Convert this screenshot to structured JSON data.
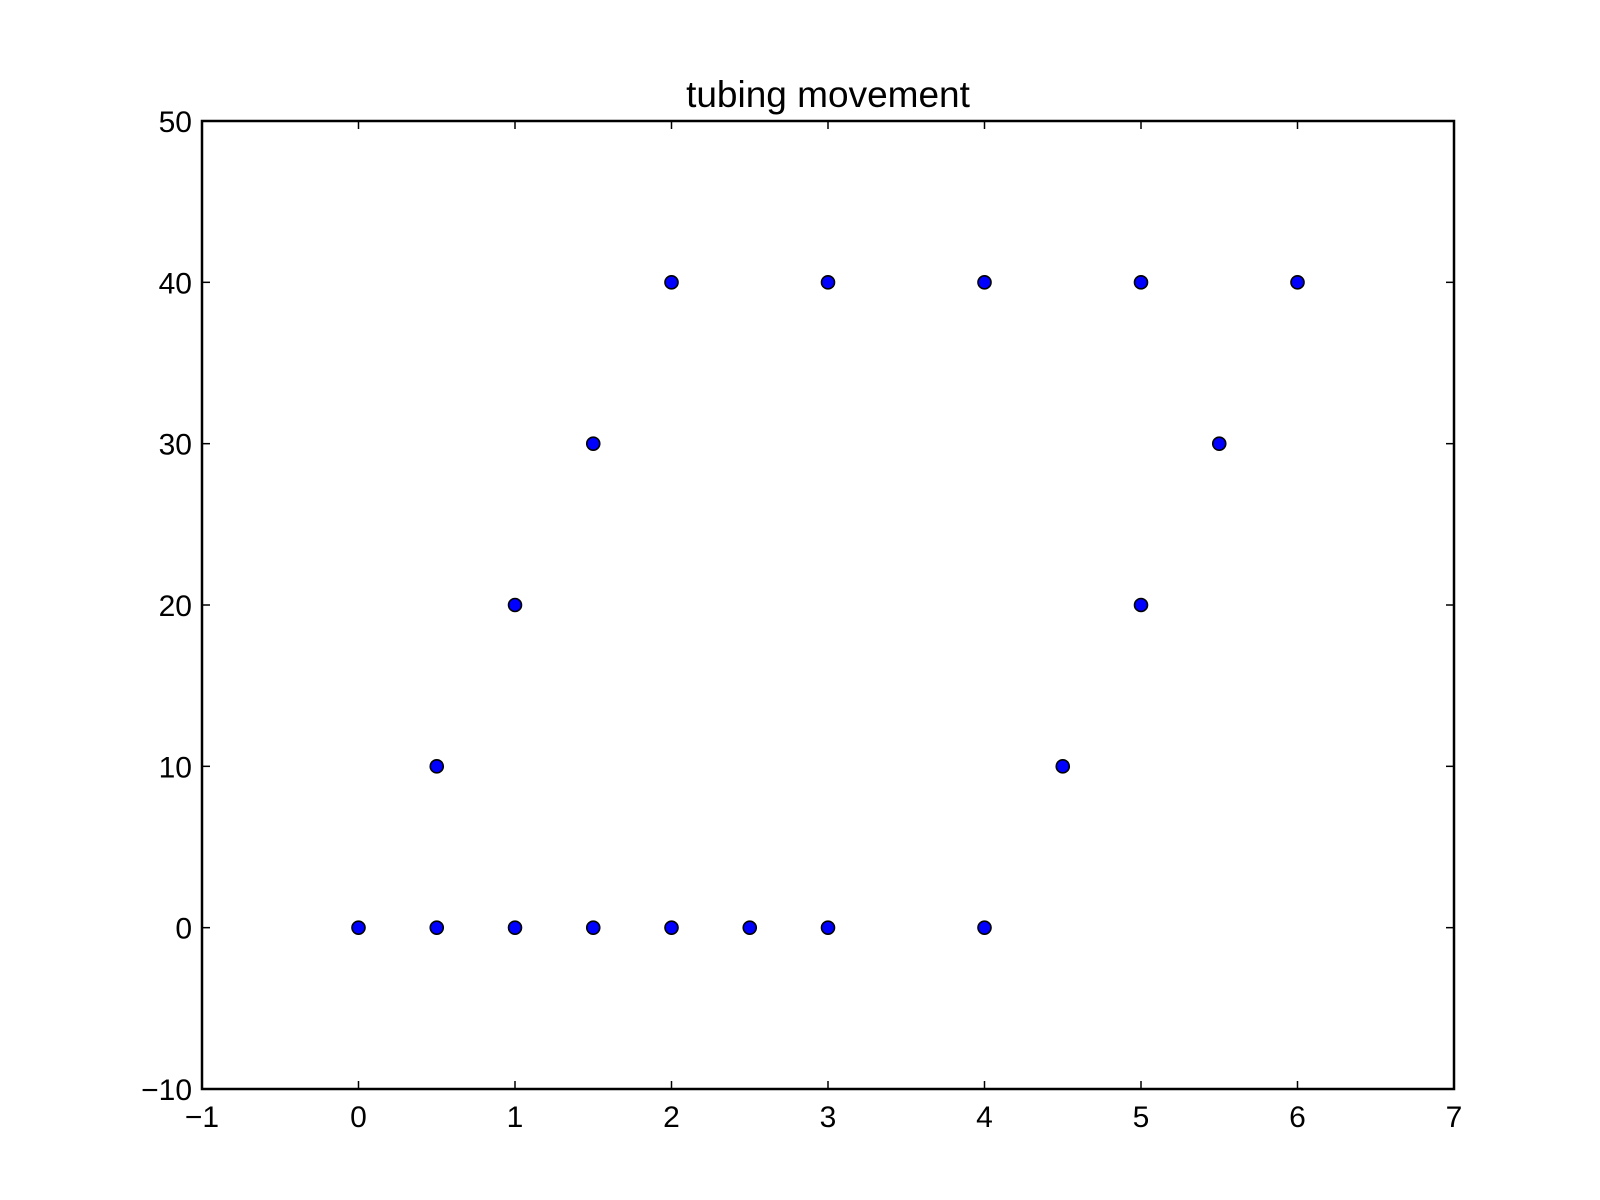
{
  "chart_data": {
    "type": "scatter",
    "title": "tubing movement",
    "xlabel": "",
    "ylabel": "",
    "xlim": [
      -1,
      7
    ],
    "ylim": [
      -10,
      50
    ],
    "xticks": [
      -1,
      0,
      1,
      2,
      3,
      4,
      5,
      6,
      7
    ],
    "yticks": [
      -10,
      0,
      10,
      20,
      30,
      40,
      50
    ],
    "xtick_labels": [
      "−1",
      "0",
      "1",
      "2",
      "3",
      "4",
      "5",
      "6",
      "7"
    ],
    "ytick_labels": [
      "−10",
      "0",
      "10",
      "20",
      "30",
      "40",
      "50"
    ],
    "grid": false,
    "marker_color": "#0000ff",
    "marker_edge_color": "#000000",
    "series": [
      {
        "x": [
          0,
          0.5,
          1,
          1.5,
          2,
          2.5,
          3,
          4,
          0.5,
          1,
          1.5,
          2,
          3,
          4,
          5,
          6,
          5.5,
          5,
          4.5
        ],
        "y": [
          0,
          0,
          0,
          0,
          0,
          0,
          0,
          0,
          10,
          20,
          30,
          40,
          40,
          40,
          40,
          40,
          30,
          20,
          10
        ]
      }
    ]
  }
}
